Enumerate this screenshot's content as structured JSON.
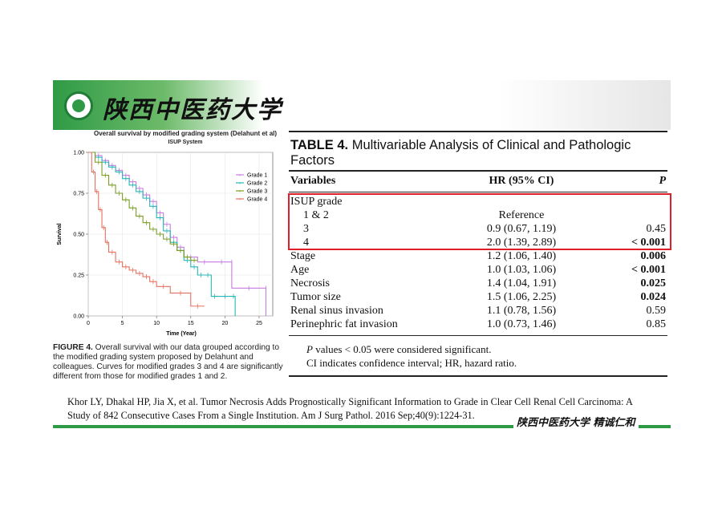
{
  "header": {
    "university_name": "陕西中医药大学"
  },
  "figure": {
    "plot_title": "Overall survival by modified grading system (Delahunt et al)",
    "plot_subtitle": "ISUP System",
    "caption_label": "FIGURE 4.",
    "caption_text": "Overall survival with our data grouped according to the modified grading system proposed by Delahunt and colleagues. Curves for modified grades 3 and 4 are significantly different from those for modified grades 1 and 2."
  },
  "chart_data": {
    "type": "line",
    "title": "Overall survival by modified grading system (Delahunt et al)",
    "subtitle": "ISUP System",
    "xlabel": "Time (Year)",
    "ylabel": "Survival",
    "xlim": [
      0,
      27
    ],
    "ylim": [
      0,
      1
    ],
    "xticks": [
      0,
      5,
      10,
      15,
      20,
      25
    ],
    "yticks": [
      "0.00",
      "0.25",
      "0.50",
      "0.75",
      "1.00"
    ],
    "legend_position": "top-right",
    "series": [
      {
        "name": "Grade 1",
        "color": "#c77be0",
        "x": [
          0,
          1,
          2,
          3,
          4,
          5,
          6,
          7,
          8,
          9,
          10,
          11,
          12,
          13,
          14,
          16,
          18,
          21,
          21,
          26,
          26
        ],
        "y": [
          1.0,
          0.98,
          0.95,
          0.92,
          0.89,
          0.86,
          0.82,
          0.78,
          0.74,
          0.7,
          0.63,
          0.56,
          0.48,
          0.42,
          0.36,
          0.33,
          0.33,
          0.33,
          0.17,
          0.17,
          0.0
        ]
      },
      {
        "name": "Grade 2",
        "color": "#27b6b6",
        "x": [
          0,
          1,
          2,
          3,
          4,
          5,
          6,
          7,
          8,
          9,
          10,
          11,
          12,
          13,
          14,
          15,
          16,
          17,
          18,
          19,
          21,
          21.5
        ],
        "y": [
          1.0,
          0.97,
          0.94,
          0.91,
          0.88,
          0.84,
          0.8,
          0.76,
          0.72,
          0.67,
          0.6,
          0.52,
          0.45,
          0.4,
          0.34,
          0.3,
          0.25,
          0.25,
          0.12,
          0.12,
          0.12,
          0.0
        ]
      },
      {
        "name": "Grade 3",
        "color": "#7a9d22",
        "x": [
          0,
          1,
          2,
          3,
          4,
          5,
          6,
          7,
          8,
          9,
          10,
          11,
          12,
          13,
          14,
          15,
          16
        ],
        "y": [
          1.0,
          0.94,
          0.86,
          0.8,
          0.75,
          0.71,
          0.66,
          0.61,
          0.57,
          0.53,
          0.5,
          0.47,
          0.44,
          0.4,
          0.36,
          0.34,
          0.34
        ]
      },
      {
        "name": "Grade 4",
        "color": "#e6705f",
        "x": [
          0,
          0.5,
          1,
          1.5,
          2,
          2.5,
          3,
          4,
          5,
          6,
          7,
          8,
          9,
          10,
          12,
          15,
          17
        ],
        "y": [
          1.0,
          0.88,
          0.76,
          0.65,
          0.54,
          0.45,
          0.39,
          0.33,
          0.3,
          0.28,
          0.26,
          0.24,
          0.21,
          0.18,
          0.14,
          0.06,
          0.06
        ]
      }
    ]
  },
  "table": {
    "title_label": "TABLE 4.",
    "title_text": "Multivariable Analysis of Clinical and Pathologic Factors",
    "headers": [
      "Variables",
      "HR (95% CI)",
      "P"
    ],
    "rows": [
      {
        "variable": "ISUP grade",
        "hr": "",
        "p": "",
        "indent": false,
        "bold": false
      },
      {
        "variable": "1 & 2",
        "hr": "Reference",
        "p": "",
        "indent": true,
        "bold": false
      },
      {
        "variable": "3",
        "hr": "0.9 (0.67, 1.19)",
        "p": "0.45",
        "indent": true,
        "bold": false
      },
      {
        "variable": "4",
        "hr": "2.0 (1.39, 2.89)",
        "p": "< 0.001",
        "indent": true,
        "bold": true
      },
      {
        "variable": "Stage",
        "hr": "1.2 (1.06, 1.40)",
        "p": "0.006",
        "indent": false,
        "bold": true
      },
      {
        "variable": "Age",
        "hr": "1.0 (1.03, 1.06)",
        "p": "< 0.001",
        "indent": false,
        "bold": true
      },
      {
        "variable": "Necrosis",
        "hr": "1.4 (1.04, 1.91)",
        "p": "0.025",
        "indent": false,
        "bold": true
      },
      {
        "variable": "Tumor size",
        "hr": "1.5 (1.06, 2.25)",
        "p": "0.024",
        "indent": false,
        "bold": true
      },
      {
        "variable": "Renal sinus invasion",
        "hr": "1.1 (0.78, 1.56)",
        "p": "0.59",
        "indent": false,
        "bold": false
      },
      {
        "variable": "Perinephric fat invasion",
        "hr": "1.0 (0.73, 1.46)",
        "p": "0.85",
        "indent": false,
        "bold": false
      }
    ],
    "notes": [
      "P values  < 0.05 were considered significant.",
      "CI indicates confidence interval; HR, hazard ratio."
    ],
    "highlight_color": "#e01e2a"
  },
  "citation": "Khor LY, Dhakal HP, Jia X, et al. Tumor Necrosis Adds Prognostically Significant Information to Grade in Clear Cell Renal Cell Carcinoma: A Study of 842 Consecutive Cases From a Single Institution. Am J Surg Pathol. 2016 Sep;40(9):1224-31.",
  "footer": {
    "logo_text": "陕西中医药大学  精诚仁和"
  }
}
